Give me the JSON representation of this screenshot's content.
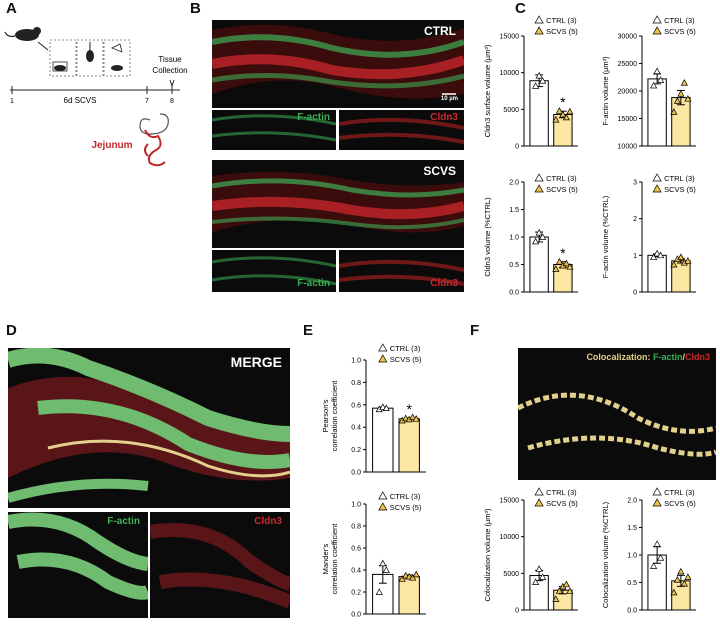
{
  "panel_labels": {
    "a": "A",
    "b": "B",
    "c": "C",
    "d": "D",
    "e": "E",
    "f": "F"
  },
  "panel_a": {
    "tissue_label_line1": "Tissue",
    "tissue_label_line2": "Collection",
    "timeline_ticks": [
      "1",
      "7",
      "8"
    ],
    "scvs_label": "6d SCVS",
    "organ_label": "Jejunum"
  },
  "panel_b": {
    "ctrl_label": "CTRL",
    "scvs_label": "SCVS",
    "scale_text": "10 µm",
    "factin_label": "F-actin",
    "cldn3_label": "Cldn3"
  },
  "panel_d": {
    "merge_label": "MERGE",
    "factin_label": "F-actin",
    "cldn3_label": "Cldn3"
  },
  "panel_f": {
    "coloc_prefix": "Colocalization: ",
    "coloc_factin": "F-actin",
    "coloc_sep": "/",
    "coloc_cldn3": "Cldn3"
  },
  "colors": {
    "ctrl_bar": "#ffffff",
    "scvs_bar": "#fbe7a2",
    "marker_scvs": "#f0c24a",
    "factin": "#3fae56",
    "cldn3": "#d2282c",
    "coloc": "#e2d08c"
  },
  "chart_data": [
    {
      "id": "c1",
      "type": "bar",
      "ylabel": "Cldn3 surface volume (µm³)",
      "ylim": [
        0,
        15000
      ],
      "yticks": [
        "0",
        "5000",
        "10000",
        "15000"
      ],
      "categories": [
        "CTRL",
        "SCVS"
      ],
      "values": [
        8900,
        4300
      ],
      "errors": [
        800,
        450
      ],
      "points": [
        [
          8200,
          9600,
          8900
        ],
        [
          3600,
          4800,
          4300,
          3900,
          4700
        ]
      ],
      "legend": [
        "CTRL (3)",
        "SCVS (5)"
      ],
      "significance": "*"
    },
    {
      "id": "c2",
      "type": "bar",
      "ylabel": "F-actin volume (µm³)",
      "ylim": [
        10000,
        30000
      ],
      "yticks": [
        "10000",
        "15000",
        "20000",
        "25000",
        "30000"
      ],
      "categories": [
        "CTRL",
        "SCVS"
      ],
      "values": [
        22200,
        18800
      ],
      "errors": [
        900,
        1300
      ],
      "points": [
        [
          21000,
          23600,
          22000
        ],
        [
          16200,
          18200,
          19500,
          21500,
          18600
        ]
      ],
      "legend": [
        "CTRL (3)",
        "SCVS (5)"
      ],
      "significance": ""
    },
    {
      "id": "c3",
      "type": "bar",
      "ylabel": "Cldn3 volume (%CTRL)",
      "ylim": [
        0,
        2.0
      ],
      "yticks": [
        "0.0",
        "0.5",
        "1.0",
        "1.5",
        "2.0"
      ],
      "categories": [
        "CTRL",
        "SCVS"
      ],
      "values": [
        1.0,
        0.5
      ],
      "errors": [
        0.09,
        0.05
      ],
      "points": [
        [
          0.92,
          1.08,
          1.0
        ],
        [
          0.42,
          0.55,
          0.48,
          0.52,
          0.46
        ]
      ],
      "legend": [
        "CTRL (3)",
        "SCVS (5)"
      ],
      "significance": "*"
    },
    {
      "id": "c4",
      "type": "bar",
      "ylabel": "F-actin volume (%CTRL)",
      "ylim": [
        0,
        3
      ],
      "yticks": [
        "0",
        "1",
        "2",
        "3"
      ],
      "categories": [
        "CTRL",
        "SCVS"
      ],
      "values": [
        1.0,
        0.85
      ],
      "errors": [
        0.04,
        0.06
      ],
      "points": [
        [
          0.95,
          1.05,
          1.0
        ],
        [
          0.75,
          0.9,
          0.95,
          0.8,
          0.85
        ]
      ],
      "legend": [
        "CTRL (3)",
        "SCVS (5)"
      ],
      "significance": ""
    },
    {
      "id": "e1",
      "type": "bar",
      "ylabel": "Pearson's correlation coefficient",
      "ylim": [
        0,
        1.0
      ],
      "yticks": [
        "0.0",
        "0.2",
        "0.4",
        "0.6",
        "0.8",
        "1.0"
      ],
      "categories": [
        "CTRL",
        "SCVS"
      ],
      "values": [
        0.57,
        0.475
      ],
      "errors": [
        0.01,
        0.008
      ],
      "points": [
        [
          0.56,
          0.58,
          0.57
        ],
        [
          0.46,
          0.48,
          0.47,
          0.49,
          0.475
        ]
      ],
      "legend": [
        "CTRL (3)",
        "SCVS (5)"
      ],
      "significance": "*"
    },
    {
      "id": "e2",
      "type": "bar",
      "ylabel": "Mander's correlation coefficient",
      "ylim": [
        0,
        1.0
      ],
      "yticks": [
        "0.0",
        "0.2",
        "0.4",
        "0.6",
        "0.8",
        "1.0"
      ],
      "categories": [
        "CTRL",
        "SCVS"
      ],
      "values": [
        0.36,
        0.34
      ],
      "errors": [
        0.08,
        0.015
      ],
      "points": [
        [
          0.2,
          0.46,
          0.4
        ],
        [
          0.32,
          0.35,
          0.34,
          0.33,
          0.36
        ]
      ],
      "legend": [
        "CTRL (3)",
        "SCVS (5)"
      ],
      "significance": ""
    },
    {
      "id": "f1",
      "type": "bar",
      "ylabel": "Colocalization volume (µm³)",
      "ylim": [
        0,
        15000
      ],
      "yticks": [
        "0",
        "5000",
        "10000",
        "15000"
      ],
      "categories": [
        "CTRL",
        "SCVS"
      ],
      "values": [
        4700,
        2700
      ],
      "errors": [
        700,
        500
      ],
      "points": [
        [
          3800,
          5600,
          4500
        ],
        [
          1500,
          2600,
          3200,
          3500,
          2600
        ]
      ],
      "legend": [
        "CTRL (3)",
        "SCVS (5)"
      ],
      "significance": ""
    },
    {
      "id": "f2",
      "type": "bar",
      "ylabel": "Colocalization volume (%CTRL)",
      "ylim": [
        0,
        2.0
      ],
      "yticks": [
        "0.0",
        "0.5",
        "1.0",
        "1.5",
        "2.0"
      ],
      "categories": [
        "CTRL",
        "SCVS"
      ],
      "values": [
        1.0,
        0.53
      ],
      "errors": [
        0.15,
        0.1
      ],
      "points": [
        [
          0.8,
          1.2,
          0.95
        ],
        [
          0.32,
          0.55,
          0.7,
          0.48,
          0.6
        ]
      ],
      "legend": [
        "CTRL (3)",
        "SCVS (5)"
      ],
      "significance": ""
    }
  ]
}
